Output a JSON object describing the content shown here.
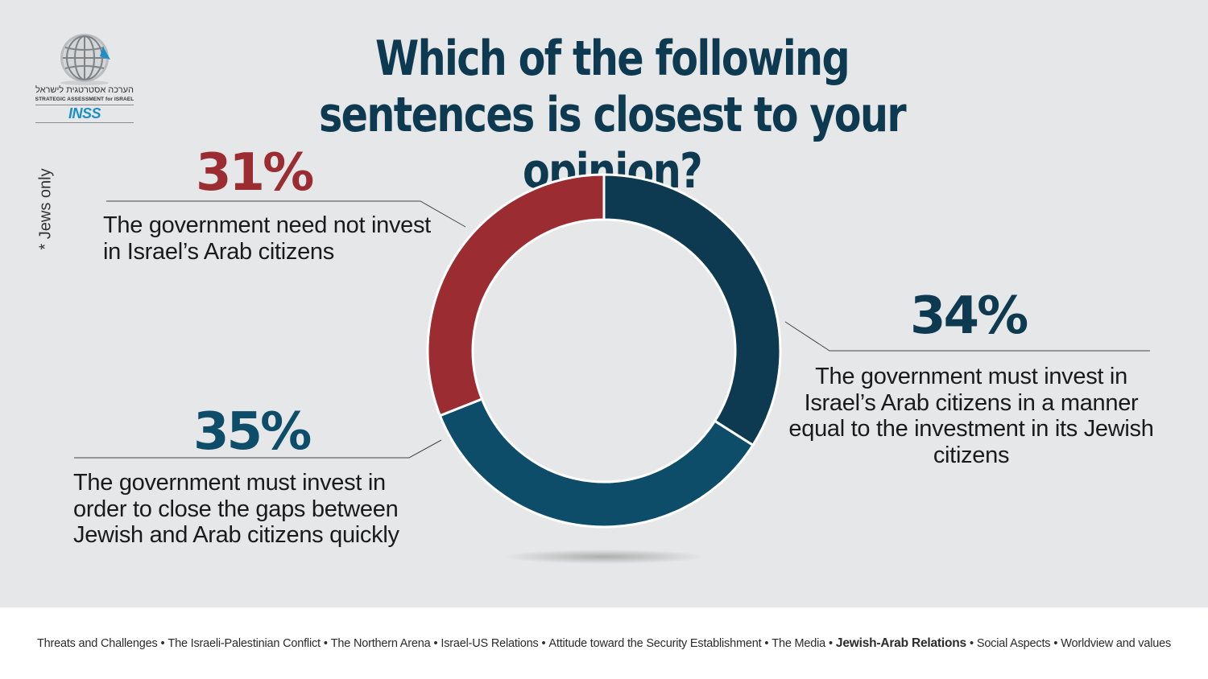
{
  "title": "Which of the following sentences is closest to your opinion?",
  "logo": {
    "hebrew_text": "הערכה אסטרטגית לישראל",
    "english_text": "STRATEGIC ASSESSMENT for ISRAEL",
    "name": "INSS",
    "icon": "globe-icon"
  },
  "note": "* Jews only",
  "colors": {
    "background": "#e6e7e8",
    "dark_navy": "#0d3a50",
    "teal_blue": "#0d4d6a",
    "red": "#9b2d32"
  },
  "chart_data": {
    "type": "pie",
    "donut": true,
    "title": "Which of the following sentences is closest to your opinion?",
    "slices": [
      {
        "label": "The government must invest in Israel’s Arab citizens in a manner equal to the investment in its Jewish citizens",
        "value": 34,
        "display": "34%",
        "color": "#0d3a50"
      },
      {
        "label": "The government must invest in order to close the gaps between Jewish and Arab citizens quickly",
        "value": 35,
        "display": "35%",
        "color": "#0d4d6a"
      },
      {
        "label": "The government need not invest in Israel’s Arab citizens",
        "value": 31,
        "display": "31%",
        "color": "#9b2d32"
      }
    ]
  },
  "footer": {
    "items": [
      {
        "label": "Threats and Challenges",
        "active": false
      },
      {
        "label": "The Israeli-Palestinian Conflict",
        "active": false
      },
      {
        "label": "The Northern  Arena",
        "active": false
      },
      {
        "label": "Israel-US Relations",
        "active": false
      },
      {
        "label": "Attitude toward the Security Establishment",
        "active": false
      },
      {
        "label": "The Media",
        "active": false
      },
      {
        "label": "Jewish-Arab Relations",
        "active": true
      },
      {
        "label": "Social Aspects",
        "active": false
      },
      {
        "label": "Worldview and values",
        "active": false
      }
    ],
    "separator": "•"
  }
}
